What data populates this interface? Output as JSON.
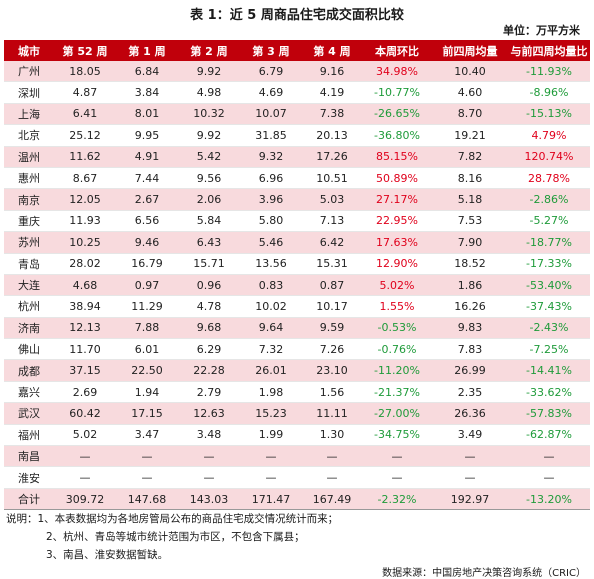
{
  "title": "表 1：近 5 周商品住宅成交面积比较",
  "unit": "单位：万平方米",
  "headers": [
    "城市",
    "第 52 周",
    "第 1 周",
    "第 2 周",
    "第 3 周",
    "第 4 周",
    "本周环比",
    "前四周均量",
    "与前四周均量比"
  ],
  "rows": [
    {
      "c": [
        "广州",
        "18.05",
        "6.84",
        "9.92",
        "6.79",
        "9.16",
        "34.98%",
        "10.40",
        "-11.93%"
      ],
      "pink": true,
      "ws": "up",
      "ms": "down"
    },
    {
      "c": [
        "深圳",
        "4.87",
        "3.84",
        "4.98",
        "4.69",
        "4.19",
        "-10.77%",
        "4.60",
        "-8.96%"
      ],
      "pink": false,
      "ws": "down",
      "ms": "down"
    },
    {
      "c": [
        "上海",
        "6.41",
        "8.01",
        "10.32",
        "10.07",
        "7.38",
        "-26.65%",
        "8.70",
        "-15.13%"
      ],
      "pink": true,
      "ws": "down",
      "ms": "down"
    },
    {
      "c": [
        "北京",
        "25.12",
        "9.95",
        "9.92",
        "31.85",
        "20.13",
        "-36.80%",
        "19.21",
        "4.79%"
      ],
      "pink": false,
      "ws": "down",
      "ms": "up"
    },
    {
      "c": [
        "温州",
        "11.62",
        "4.91",
        "5.42",
        "9.32",
        "17.26",
        "85.15%",
        "7.82",
        "120.74%"
      ],
      "pink": true,
      "ws": "up",
      "ms": "up"
    },
    {
      "c": [
        "惠州",
        "8.67",
        "7.44",
        "9.56",
        "6.96",
        "10.51",
        "50.89%",
        "8.16",
        "28.78%"
      ],
      "pink": false,
      "ws": "up",
      "ms": "up"
    },
    {
      "c": [
        "南京",
        "12.05",
        "2.67",
        "2.06",
        "3.96",
        "5.03",
        "27.17%",
        "5.18",
        "-2.86%"
      ],
      "pink": true,
      "ws": "up",
      "ms": "down"
    },
    {
      "c": [
        "重庆",
        "11.93",
        "6.56",
        "5.84",
        "5.80",
        "7.13",
        "22.95%",
        "7.53",
        "-5.27%"
      ],
      "pink": false,
      "ws": "up",
      "ms": "down"
    },
    {
      "c": [
        "苏州",
        "10.25",
        "9.46",
        "6.43",
        "5.46",
        "6.42",
        "17.63%",
        "7.90",
        "-18.77%"
      ],
      "pink": true,
      "ws": "up",
      "ms": "down"
    },
    {
      "c": [
        "青岛",
        "28.02",
        "16.79",
        "15.71",
        "13.56",
        "15.31",
        "12.90%",
        "18.52",
        "-17.33%"
      ],
      "pink": false,
      "ws": "up",
      "ms": "down"
    },
    {
      "c": [
        "大连",
        "4.68",
        "0.97",
        "0.96",
        "0.83",
        "0.87",
        "5.02%",
        "1.86",
        "-53.40%"
      ],
      "pink": true,
      "ws": "up",
      "ms": "down"
    },
    {
      "c": [
        "杭州",
        "38.94",
        "11.29",
        "4.78",
        "10.02",
        "10.17",
        "1.55%",
        "16.26",
        "-37.43%"
      ],
      "pink": false,
      "ws": "up",
      "ms": "down"
    },
    {
      "c": [
        "济南",
        "12.13",
        "7.88",
        "9.68",
        "9.64",
        "9.59",
        "-0.53%",
        "9.83",
        "-2.43%"
      ],
      "pink": true,
      "ws": "down",
      "ms": "down"
    },
    {
      "c": [
        "佛山",
        "11.70",
        "6.01",
        "6.29",
        "7.32",
        "7.26",
        "-0.76%",
        "7.83",
        "-7.25%"
      ],
      "pink": false,
      "ws": "down",
      "ms": "down"
    },
    {
      "c": [
        "成都",
        "37.15",
        "22.50",
        "22.28",
        "26.01",
        "23.10",
        "-11.20%",
        "26.99",
        "-14.41%"
      ],
      "pink": true,
      "ws": "down",
      "ms": "down"
    },
    {
      "c": [
        "嘉兴",
        "2.69",
        "1.94",
        "2.79",
        "1.98",
        "1.56",
        "-21.37%",
        "2.35",
        "-33.62%"
      ],
      "pink": false,
      "ws": "down",
      "ms": "down"
    },
    {
      "c": [
        "武汉",
        "60.42",
        "17.15",
        "12.63",
        "15.23",
        "11.11",
        "-27.00%",
        "26.36",
        "-57.83%"
      ],
      "pink": true,
      "ws": "down",
      "ms": "down"
    },
    {
      "c": [
        "福州",
        "5.02",
        "3.47",
        "3.48",
        "1.99",
        "1.30",
        "-34.75%",
        "3.49",
        "-62.87%"
      ],
      "pink": false,
      "ws": "down",
      "ms": "down"
    },
    {
      "c": [
        "南昌",
        "—",
        "—",
        "—",
        "—",
        "—",
        "—",
        "—",
        "—"
      ],
      "pink": true,
      "ws": "",
      "ms": ""
    },
    {
      "c": [
        "淮安",
        "—",
        "—",
        "—",
        "—",
        "—",
        "—",
        "—",
        "—"
      ],
      "pink": false,
      "ws": "",
      "ms": ""
    }
  ],
  "total": {
    "c": [
      "合计",
      "309.72",
      "147.68",
      "143.03",
      "171.47",
      "167.49",
      "-2.32%",
      "192.97",
      "-13.20%"
    ],
    "ws": "down",
    "ms": "down"
  },
  "notes": [
    "说明：1、本表数据均为各地房管局公布的商品住宅成交情况统计而来；",
    "2、杭州、青岛等城市统计范围为市区，不包含下属县；",
    "3、南昌、淮安数据暂缺。"
  ],
  "source": "数据来源：中国房地产决策咨询系统（CRIC）",
  "colors": {
    "header_bg": "#c0000b",
    "row_pink": "#f8dadd",
    "up": "#e0001b",
    "down": "#1f9b3a"
  }
}
